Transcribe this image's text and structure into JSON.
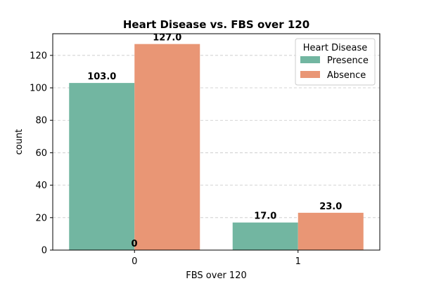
{
  "chart_data": {
    "type": "bar",
    "title": "Heart Disease vs. FBS over 120",
    "xlabel": "FBS over 120",
    "ylabel": "count",
    "categories": [
      "0",
      "1"
    ],
    "series": [
      {
        "name": "Presence",
        "color": "#72b6a1",
        "values": [
          103,
          17
        ],
        "labels": [
          "103.0",
          "17.0"
        ]
      },
      {
        "name": "Absence",
        "color": "#e99675",
        "values": [
          127,
          23
        ],
        "labels": [
          "127.0",
          "23.0"
        ]
      }
    ],
    "extra_label": "0",
    "ylim": [
      0,
      133.35
    ],
    "yticks": [
      0,
      20,
      40,
      60,
      80,
      100,
      120
    ],
    "grid": true,
    "legend": {
      "title": "Heart Disease",
      "placement": "top-right"
    }
  }
}
